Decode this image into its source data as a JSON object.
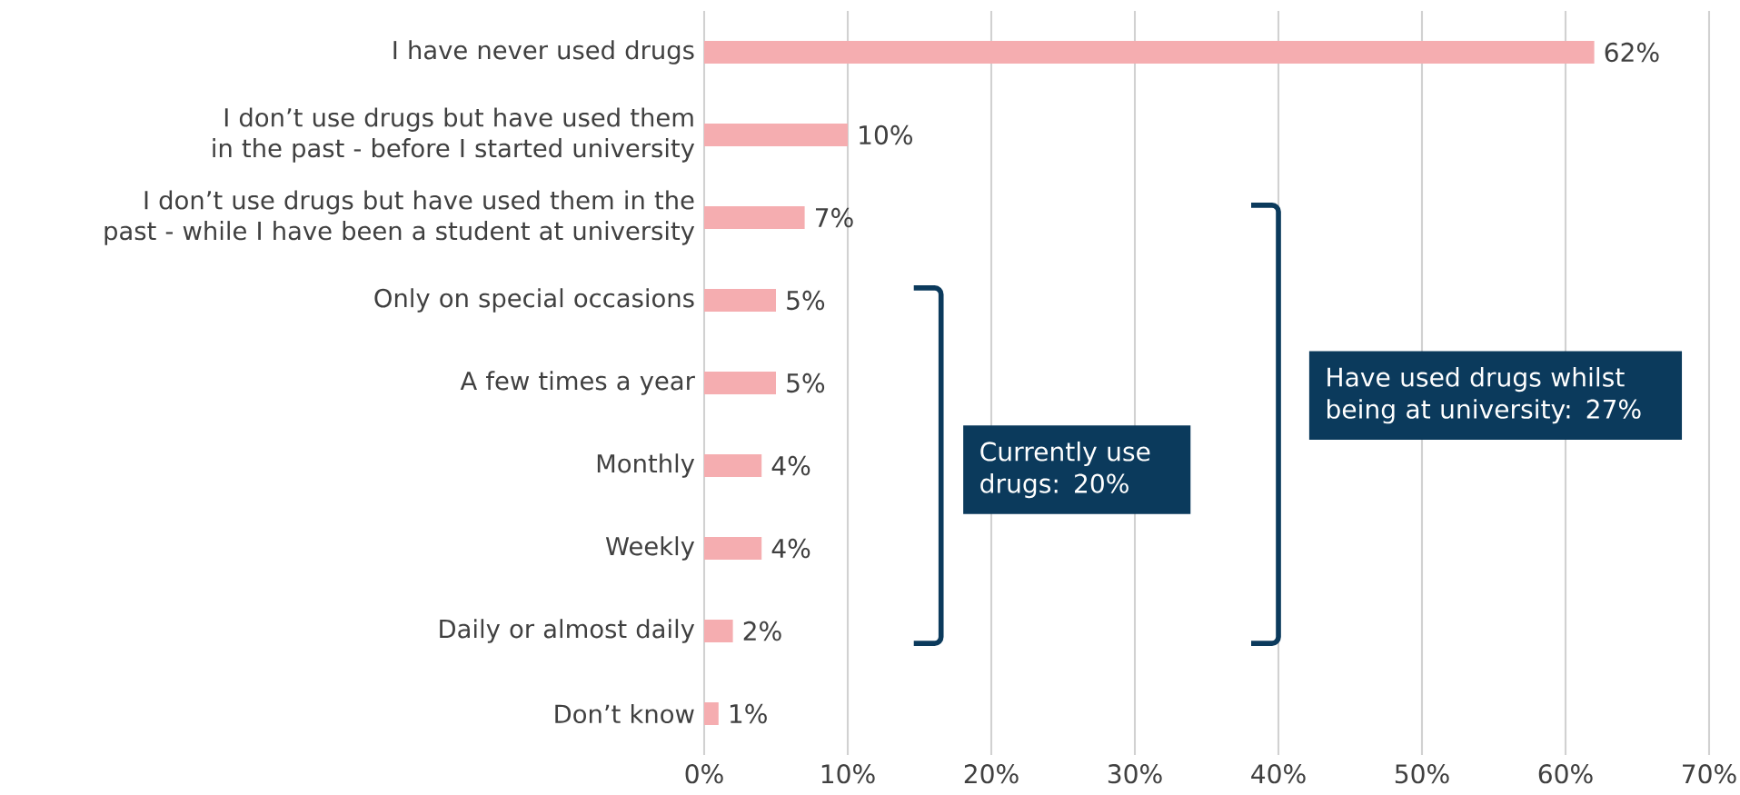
{
  "chart_data": {
    "type": "bar",
    "orientation": "horizontal",
    "categories": [
      "I have never used drugs",
      "I don’t use drugs but have used them in the past - before I started university",
      "I don’t use drugs but have used them in the past - while I have been a student at university",
      "Only on special occasions",
      "A few times a year",
      "Monthly",
      "Weekly",
      "Daily or almost daily",
      "Don’t know"
    ],
    "values": [
      62,
      10,
      7,
      5,
      5,
      4,
      4,
      2,
      1
    ],
    "value_labels": [
      "62%",
      "10%",
      "7%",
      "5%",
      "5%",
      "4%",
      "4%",
      "2%",
      "1%"
    ],
    "color": "#f5adb0",
    "xlim": [
      0,
      70
    ],
    "xticks": [
      {
        "value": 0,
        "label": "0%"
      },
      {
        "value": 10,
        "label": "10%"
      },
      {
        "value": 20,
        "label": "20%"
      },
      {
        "value": 30,
        "label": "30%"
      },
      {
        "value": 40,
        "label": "40%"
      },
      {
        "value": 50,
        "label": "50%"
      },
      {
        "value": 60,
        "label": "60%"
      },
      {
        "value": 70,
        "label": "70%"
      }
    ],
    "grid": "x",
    "annotations": [
      "Currently use drugs: 20%",
      "Have used drugs whilst being at university: 27%"
    ]
  }
}
